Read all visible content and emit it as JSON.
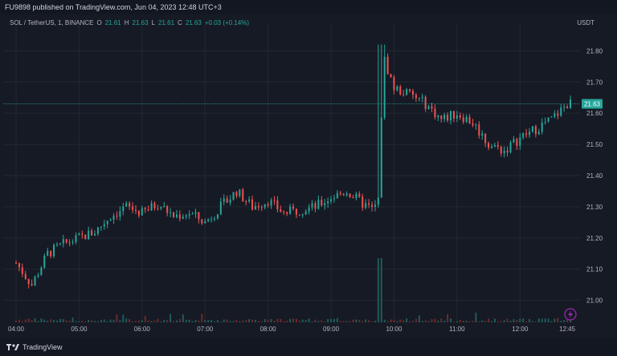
{
  "header": {
    "publisher_text": "FU9898 published on TradingView.com, Jun 04, 2023 12:48 UTC+3"
  },
  "legend": {
    "symbol": "SOL / TetherUS, 1, BINANCE",
    "o_label": "O",
    "o_value": "21.61",
    "h_label": "H",
    "h_value": "21.63",
    "l_label": "L",
    "l_value": "21.61",
    "c_label": "C",
    "c_value": "21.63",
    "change": "+0.03 (+0.14%)"
  },
  "currency": "USDT",
  "last_price": {
    "value": 21.63,
    "label": "21.63",
    "color": "#26a69a"
  },
  "colors": {
    "up": "#26a69a",
    "down": "#ef5350",
    "grid": "#242833",
    "axis_text": "#b2b5be",
    "volume_up": "#1f5c57",
    "volume_down": "#6b2b2b"
  },
  "footer": {
    "brand": "TradingView"
  },
  "chart_data": {
    "type": "candlestick",
    "x_labels": [
      "04:00",
      "05:00",
      "06:00",
      "07:00",
      "08:00",
      "09:00",
      "10:00",
      "11:00",
      "12:00",
      "12:45"
    ],
    "y_ticks": [
      "21.80",
      "21.70",
      "21.60",
      "21.50",
      "21.40",
      "21.30",
      "21.20",
      "21.10",
      "21.00"
    ],
    "ylim": [
      20.94,
      21.86
    ],
    "x_range": [
      "04:00",
      "12:48"
    ],
    "grid": true,
    "series": [
      {
        "name": "SOL / TetherUS",
        "x": [
          "04:00",
          "04:15",
          "04:30",
          "04:45",
          "05:00",
          "05:15",
          "05:30",
          "05:45",
          "06:00",
          "06:15",
          "06:30",
          "06:45",
          "07:00",
          "07:15",
          "07:30",
          "07:45",
          "08:00",
          "08:15",
          "08:30",
          "08:45",
          "09:00",
          "09:15",
          "09:30",
          "09:40",
          "09:45",
          "09:50",
          "10:00",
          "10:15",
          "10:30",
          "10:45",
          "11:00",
          "11:15",
          "11:30",
          "11:45",
          "12:00",
          "12:15",
          "12:30",
          "12:45"
        ],
        "y": [
          21.12,
          21.05,
          21.15,
          21.18,
          21.2,
          21.22,
          21.27,
          21.3,
          21.28,
          21.31,
          21.27,
          21.28,
          21.25,
          21.3,
          21.35,
          21.3,
          21.32,
          21.28,
          21.29,
          21.3,
          21.33,
          21.35,
          21.31,
          21.29,
          21.32,
          21.78,
          21.68,
          21.66,
          21.63,
          21.58,
          21.6,
          21.57,
          21.5,
          21.48,
          21.52,
          21.55,
          21.58,
          21.63
        ]
      }
    ]
  }
}
